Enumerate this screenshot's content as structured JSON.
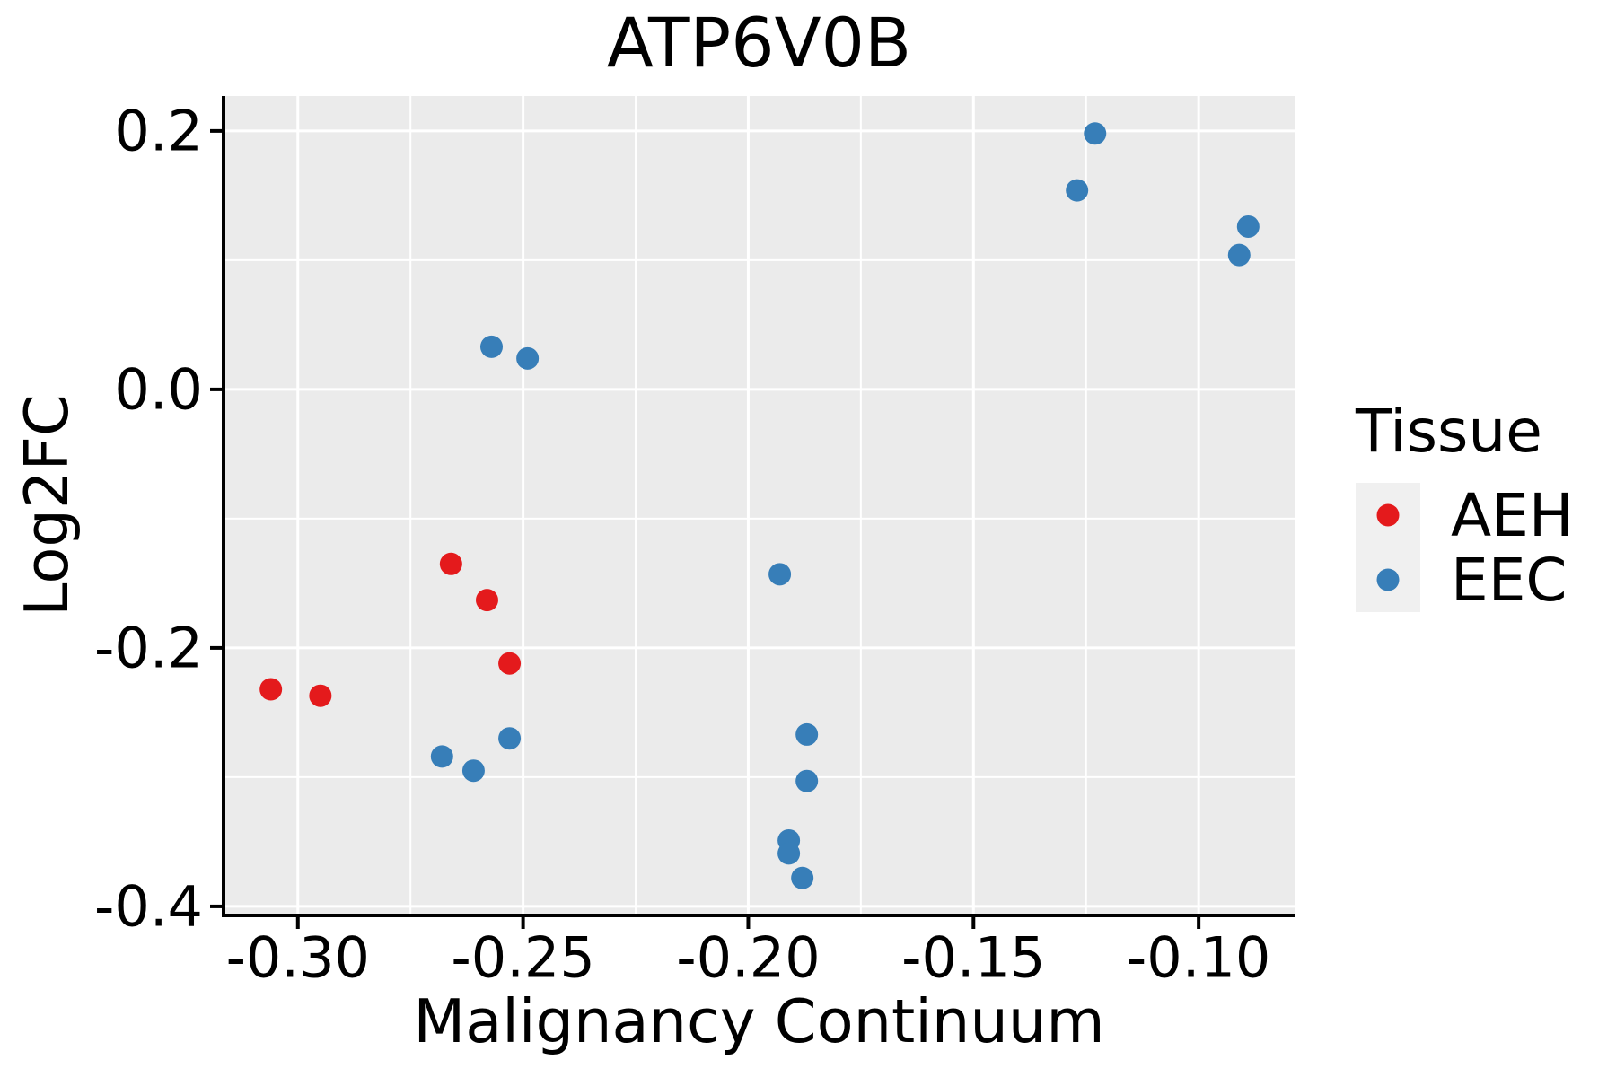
{
  "title": "ATP6V0B",
  "axes": {
    "x": {
      "label": "Malignancy Continuum",
      "tick_values": [
        -0.3,
        -0.25,
        -0.2,
        -0.15,
        -0.1
      ],
      "tick_labels": [
        "-0.30",
        "-0.25",
        "-0.20",
        "-0.15",
        "-0.10"
      ],
      "minor_tick_values": [
        -0.275,
        -0.225,
        -0.175,
        -0.125
      ]
    },
    "y": {
      "label": "Log2FC",
      "tick_values": [
        0.2,
        0.0,
        -0.2,
        -0.4
      ],
      "tick_labels": [
        "0.2",
        "0.0",
        "-0.2",
        "-0.4"
      ],
      "minor_tick_values": [
        0.1,
        -0.1,
        -0.3
      ]
    }
  },
  "legend": {
    "title": "Tissue",
    "entries": [
      {
        "label": "AEH",
        "color": "#E41A1C"
      },
      {
        "label": "EEC",
        "color": "#377EB8"
      }
    ]
  },
  "colors": {
    "panel_background": "#EBEBEB",
    "gridline": "#FFFFFF",
    "axis_line": "#000000",
    "text": "#000000",
    "legend_key_background": "#F0F0F0",
    "aeh": "#E41A1C",
    "eec": "#377EB8"
  },
  "chart_data": {
    "type": "scatter",
    "title": "ATP6V0B",
    "xlabel": "Malignancy Continuum",
    "ylabel": "Log2FC",
    "xlim": [
      -0.3165,
      -0.0787
    ],
    "ylim": [
      -0.407,
      0.227
    ],
    "grid": "major and minor, white on gray panel",
    "legend_position": "right",
    "series": [
      {
        "name": "AEH",
        "color": "#E41A1C",
        "points": [
          [
            -0.306,
            -0.232
          ],
          [
            -0.295,
            -0.237
          ],
          [
            -0.266,
            -0.135
          ],
          [
            -0.258,
            -0.163
          ],
          [
            -0.253,
            -0.212
          ]
        ]
      },
      {
        "name": "EEC",
        "color": "#377EB8",
        "points": [
          [
            -0.268,
            -0.284
          ],
          [
            -0.261,
            -0.295
          ],
          [
            -0.257,
            0.033
          ],
          [
            -0.253,
            -0.27
          ],
          [
            -0.249,
            0.024
          ],
          [
            -0.193,
            -0.143
          ],
          [
            -0.191,
            -0.349
          ],
          [
            -0.191,
            -0.359
          ],
          [
            -0.188,
            -0.378
          ],
          [
            -0.187,
            -0.267
          ],
          [
            -0.187,
            -0.303
          ],
          [
            -0.127,
            0.154
          ],
          [
            -0.123,
            0.198
          ],
          [
            -0.091,
            0.104
          ],
          [
            -0.089,
            0.126
          ]
        ]
      }
    ]
  }
}
